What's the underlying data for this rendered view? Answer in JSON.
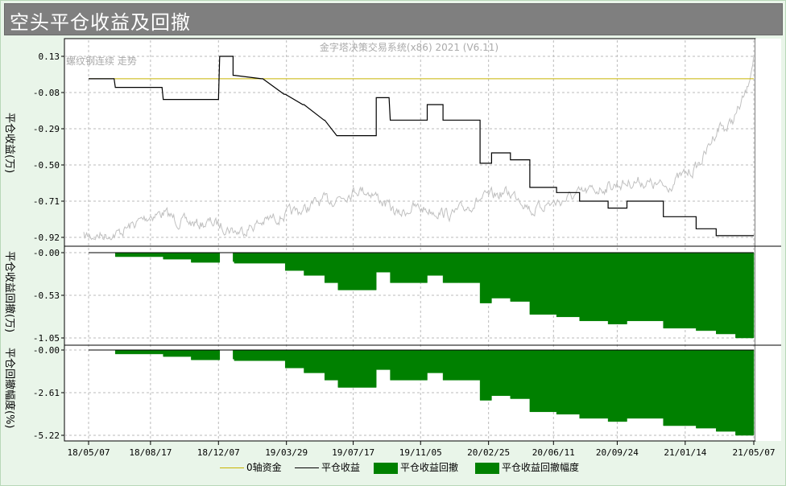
{
  "window": {
    "title": "空头平仓收益及回撤"
  },
  "watermark": "金字塔决策交易系统(x86) 2021 (V6.11)",
  "overlay_label": "螺纹钢连续 走势",
  "colors": {
    "zero_line": "#c8b400",
    "equity_line": "#000000",
    "drawdown_fill": "#008000",
    "price_line": "#c0c0c0",
    "grid": "#bbbbbb"
  },
  "legend": {
    "zero": "0轴资金",
    "equity": "平仓收益",
    "drawdown": "平仓收益回撤",
    "drawdown_pct": "平仓收益回撤幅度"
  },
  "chart_data": [
    {
      "type": "line",
      "panel": "平仓收益(万)",
      "ylabel": "平仓收益(万)",
      "yticks": [
        "0.13",
        "-0.08",
        "-0.29",
        "-0.50",
        "-0.71",
        "-0.92"
      ],
      "ylim": [
        -0.92,
        0.13
      ],
      "step": true,
      "series": [
        {
          "name": "0轴资金",
          "x": [
            "18/05/07",
            "21/05/07"
          ],
          "y": [
            0.0,
            0.0
          ]
        },
        {
          "name": "平仓收益",
          "x": [
            "18/05/07",
            "18/06/18",
            "18/06/20",
            "18/09/05",
            "18/09/07",
            "18/10/21",
            "18/10/23",
            "18/12/07",
            "18/12/09",
            "18/12/31",
            "18/12/31",
            "19/01/02",
            "19/02/16",
            "19/02/18",
            "19/03/25",
            "19/03/27",
            "19/04/25",
            "19/04/27",
            "19/05/30",
            "19/05/31",
            "19/06/20",
            "19/06/22",
            "19/07/25",
            "19/08/24",
            "19/08/24",
            "19/09/14",
            "19/09/16",
            "19/10/08",
            "19/10/09",
            "19/11/16",
            "19/11/16",
            "19/12/12",
            "19/12/12",
            "20/01/07",
            "20/01/07",
            "20/02/11",
            "20/02/11",
            "20/03/01",
            "20/03/01",
            "20/04/01",
            "20/04/01",
            "20/05/03",
            "20/05/03",
            "20/06/16",
            "20/06/16",
            "20/07/24",
            "20/07/24",
            "20/09/09",
            "20/09/09",
            "20/10/10",
            "20/10/10",
            "20/12/09",
            "20/12/09",
            "21/02/01",
            "21/02/01",
            "21/03/06",
            "21/03/06",
            "21/04/07",
            "21/04/07",
            "21/05/07"
          ],
          "y": [
            0.0,
            0.0,
            -0.05,
            -0.05,
            -0.12,
            -0.12,
            -0.12,
            -0.12,
            0.13,
            0.13,
            0.02,
            0.02,
            0.0,
            0.0,
            -0.09,
            -0.09,
            -0.15,
            -0.15,
            -0.24,
            -0.24,
            -0.33,
            -0.33,
            -0.33,
            -0.33,
            -0.11,
            -0.11,
            -0.24,
            -0.24,
            -0.24,
            -0.24,
            -0.15,
            -0.15,
            -0.24,
            -0.24,
            -0.24,
            -0.24,
            -0.49,
            -0.49,
            -0.43,
            -0.43,
            -0.47,
            -0.47,
            -0.63,
            -0.63,
            -0.66,
            -0.66,
            -0.71,
            -0.71,
            -0.75,
            -0.75,
            -0.71,
            -0.71,
            -0.8,
            -0.8,
            -0.87,
            -0.87,
            -0.91,
            -0.91,
            -0.91,
            -0.91
          ]
        }
      ]
    },
    {
      "type": "area",
      "panel": "平仓收益回撤(万)",
      "ylabel": "平仓收益回撤(万)",
      "yticks": [
        "-0.00",
        "-0.53",
        "-1.05"
      ],
      "ylim": [
        -1.05,
        0.0
      ],
      "series": [
        {
          "name": "平仓收益回撤",
          "x": [
            "18/05/07",
            "18/06/20",
            "18/09/07",
            "18/10/23",
            "18/12/09",
            "18/12/31",
            "19/01/02",
            "19/03/27",
            "19/04/27",
            "19/05/31",
            "19/06/22",
            "19/07/25",
            "19/08/24",
            "19/09/16",
            "19/11/16",
            "19/12/12",
            "20/01/07",
            "20/02/11",
            "20/03/01",
            "20/04/01",
            "20/05/03",
            "20/06/16",
            "20/07/24",
            "20/09/09",
            "20/10/10",
            "20/12/09",
            "21/02/01",
            "21/03/06",
            "21/04/07",
            "21/05/07"
          ],
          "y": [
            0.0,
            -0.05,
            -0.08,
            -0.12,
            0.0,
            -0.11,
            -0.13,
            -0.22,
            -0.28,
            -0.37,
            -0.46,
            -0.46,
            -0.24,
            -0.37,
            -0.28,
            -0.37,
            -0.37,
            -0.62,
            -0.56,
            -0.6,
            -0.76,
            -0.79,
            -0.84,
            -0.88,
            -0.84,
            -0.93,
            -0.96,
            -1.0,
            -1.05,
            -1.05
          ]
        }
      ]
    },
    {
      "type": "area",
      "panel": "平仓回撤幅度(%)",
      "ylabel": "平仓回撤幅度(%)",
      "yticks": [
        "-0.00",
        "-2.61",
        "-5.22"
      ],
      "ylim": [
        -5.22,
        0.0
      ],
      "series": [
        {
          "name": "平仓收益回撤幅度",
          "x": [
            "18/05/07",
            "18/06/20",
            "18/09/07",
            "18/10/23",
            "18/12/09",
            "18/12/31",
            "19/01/02",
            "19/03/27",
            "19/04/27",
            "19/05/31",
            "19/06/22",
            "19/07/25",
            "19/08/24",
            "19/09/16",
            "19/11/16",
            "19/12/12",
            "20/01/07",
            "20/02/11",
            "20/03/01",
            "20/04/01",
            "20/05/03",
            "20/06/16",
            "20/07/24",
            "20/09/09",
            "20/10/10",
            "20/12/09",
            "21/02/01",
            "21/03/06",
            "21/04/07",
            "21/05/07"
          ],
          "y": [
            0.0,
            -0.24,
            -0.4,
            -0.6,
            0.0,
            -0.55,
            -0.65,
            -1.1,
            -1.4,
            -1.84,
            -2.29,
            -2.29,
            -1.2,
            -1.84,
            -1.4,
            -1.84,
            -1.84,
            -3.08,
            -2.79,
            -2.98,
            -3.78,
            -3.93,
            -4.18,
            -4.38,
            -4.18,
            -4.63,
            -4.78,
            -4.98,
            -5.22,
            -5.22
          ]
        }
      ]
    }
  ],
  "x_axis": {
    "ticks": [
      "18/05/07",
      "18/08/17",
      "18/12/07",
      "19/03/29",
      "19/07/17",
      "19/11/05",
      "20/02/25",
      "20/06/11",
      "20/09/24",
      "21/01/14",
      "21/05/07"
    ]
  }
}
